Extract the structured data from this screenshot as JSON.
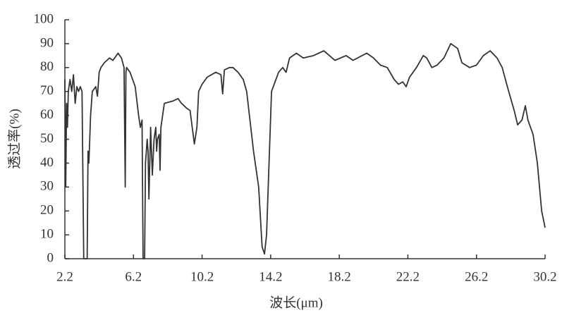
{
  "chart_data": {
    "type": "line",
    "xlabel": "波长(μm)",
    "ylabel": "透过率(%)",
    "color": "#333333",
    "x": [
      2.2,
      2.25,
      2.3,
      2.35,
      2.4,
      2.5,
      2.6,
      2.7,
      2.8,
      2.9,
      3.0,
      3.1,
      3.2,
      3.3,
      3.35,
      3.5,
      3.55,
      3.6,
      3.7,
      3.8,
      4.0,
      4.1,
      4.2,
      4.3,
      4.5,
      4.8,
      5.0,
      5.2,
      5.3,
      5.5,
      5.65,
      5.72,
      5.76,
      5.8,
      6.0,
      6.3,
      6.5,
      6.6,
      6.7,
      6.76,
      6.85,
      6.9,
      7.0,
      7.05,
      7.1,
      7.2,
      7.3,
      7.4,
      7.5,
      7.55,
      7.6,
      7.7,
      7.75,
      7.8,
      7.9,
      8.0,
      8.5,
      8.8,
      9.0,
      9.3,
      9.5,
      9.75,
      9.9,
      10.0,
      10.2,
      10.5,
      11.0,
      11.3,
      11.4,
      11.5,
      11.8,
      12.0,
      12.3,
      12.6,
      12.8,
      13.2,
      13.5,
      13.7,
      13.84,
      13.96,
      14.25,
      14.66,
      14.9,
      15.1,
      15.3,
      15.7,
      16.1,
      16.7,
      17.3,
      17.95,
      18.6,
      19.0,
      19.8,
      20.2,
      20.6,
      21.0,
      21.4,
      21.65,
      21.9,
      22.1,
      22.3,
      22.7,
      23.1,
      23.3,
      23.6,
      23.9,
      24.3,
      24.7,
      25.1,
      25.35,
      25.8,
      26.2,
      26.6,
      27.0,
      27.4,
      27.7,
      28.0,
      28.4,
      28.6,
      28.85,
      29.05,
      29.2,
      29.5,
      29.75,
      30.0,
      30.2
    ],
    "values": [
      75,
      30,
      65,
      55,
      70,
      75,
      70,
      77,
      65,
      72,
      70,
      72,
      70,
      0,
      0,
      0,
      45,
      40,
      60,
      70,
      72,
      68,
      78,
      80,
      82,
      84,
      83,
      85,
      86,
      84,
      80,
      30,
      78,
      80,
      78,
      72,
      60,
      55,
      58,
      0,
      0,
      40,
      50,
      45,
      25,
      55,
      35,
      50,
      55,
      45,
      50,
      52,
      37,
      55,
      60,
      65,
      66,
      67,
      65,
      63,
      62,
      48,
      55,
      70,
      73,
      76,
      78,
      77,
      69,
      79,
      80,
      80,
      78,
      75,
      70,
      45,
      30,
      5,
      2,
      10,
      70,
      78,
      80,
      78,
      84,
      86,
      84,
      85,
      87,
      83,
      85,
      83,
      86,
      84,
      81,
      80,
      75,
      73,
      74,
      72,
      76,
      80,
      85,
      84,
      80,
      81,
      84,
      90,
      88,
      82,
      80,
      81,
      85,
      87,
      84,
      80,
      72,
      62,
      56,
      58,
      64,
      58,
      52,
      40,
      20,
      13
    ],
    "xlim": [
      2.2,
      30.2
    ],
    "xticks": [
      2.2,
      6.2,
      10.2,
      14.2,
      18.2,
      22.2,
      26.2,
      30.2
    ],
    "ylim": [
      0,
      100
    ],
    "yticks": [
      0,
      10,
      20,
      30,
      40,
      50,
      60,
      70,
      80,
      90,
      100
    ],
    "grid": false
  }
}
